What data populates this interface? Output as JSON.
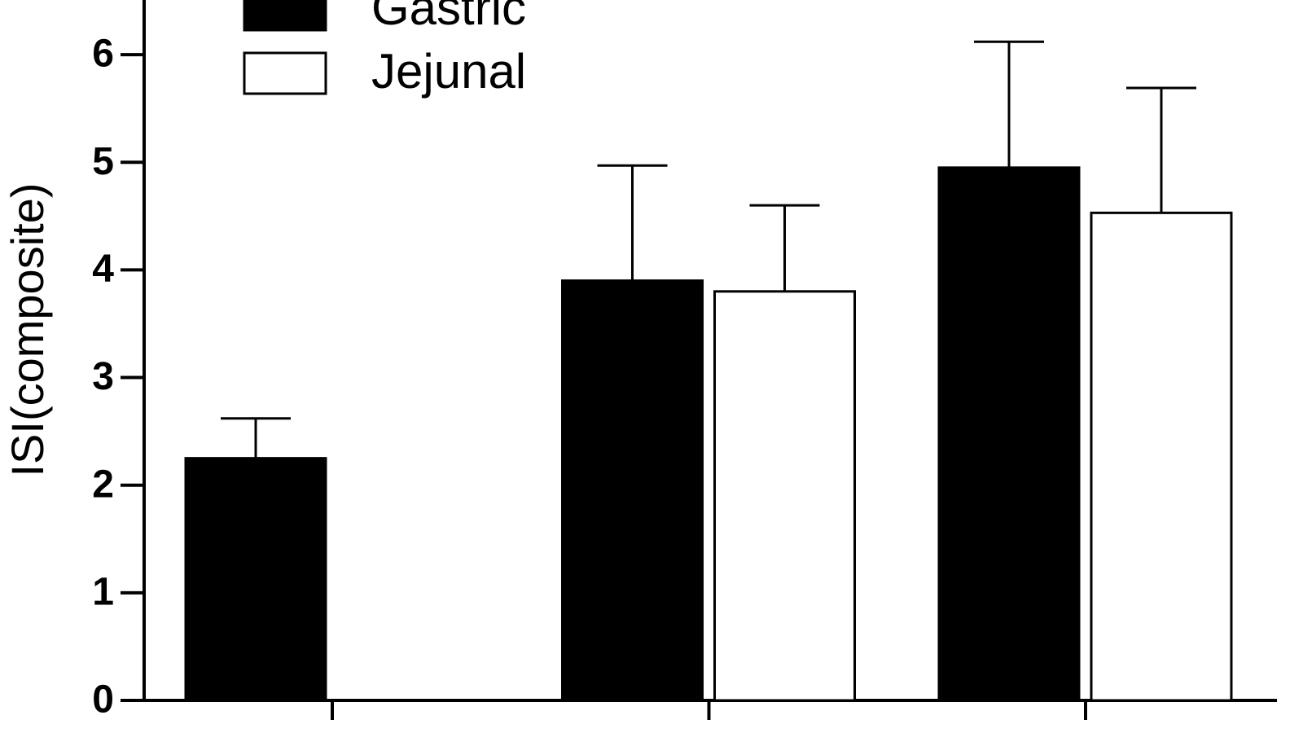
{
  "chart_data": {
    "type": "bar",
    "y_label": "ISI(composite)",
    "categories": [
      null,
      null,
      null
    ],
    "series": [
      {
        "name": "Gastric",
        "color": "#000000",
        "values": [
          2.25,
          3.9,
          4.95
        ],
        "errors": [
          0.37,
          1.07,
          1.17
        ]
      },
      {
        "name": "Jejunal",
        "color": "#ffffff",
        "values": [
          null,
          3.8,
          4.53
        ],
        "errors": [
          null,
          0.8,
          1.16
        ]
      }
    ],
    "edgecolor": "#000000",
    "ylim": [
      0,
      6.5
    ],
    "yticks": [
      0,
      1,
      2,
      3,
      4,
      5,
      6
    ]
  }
}
